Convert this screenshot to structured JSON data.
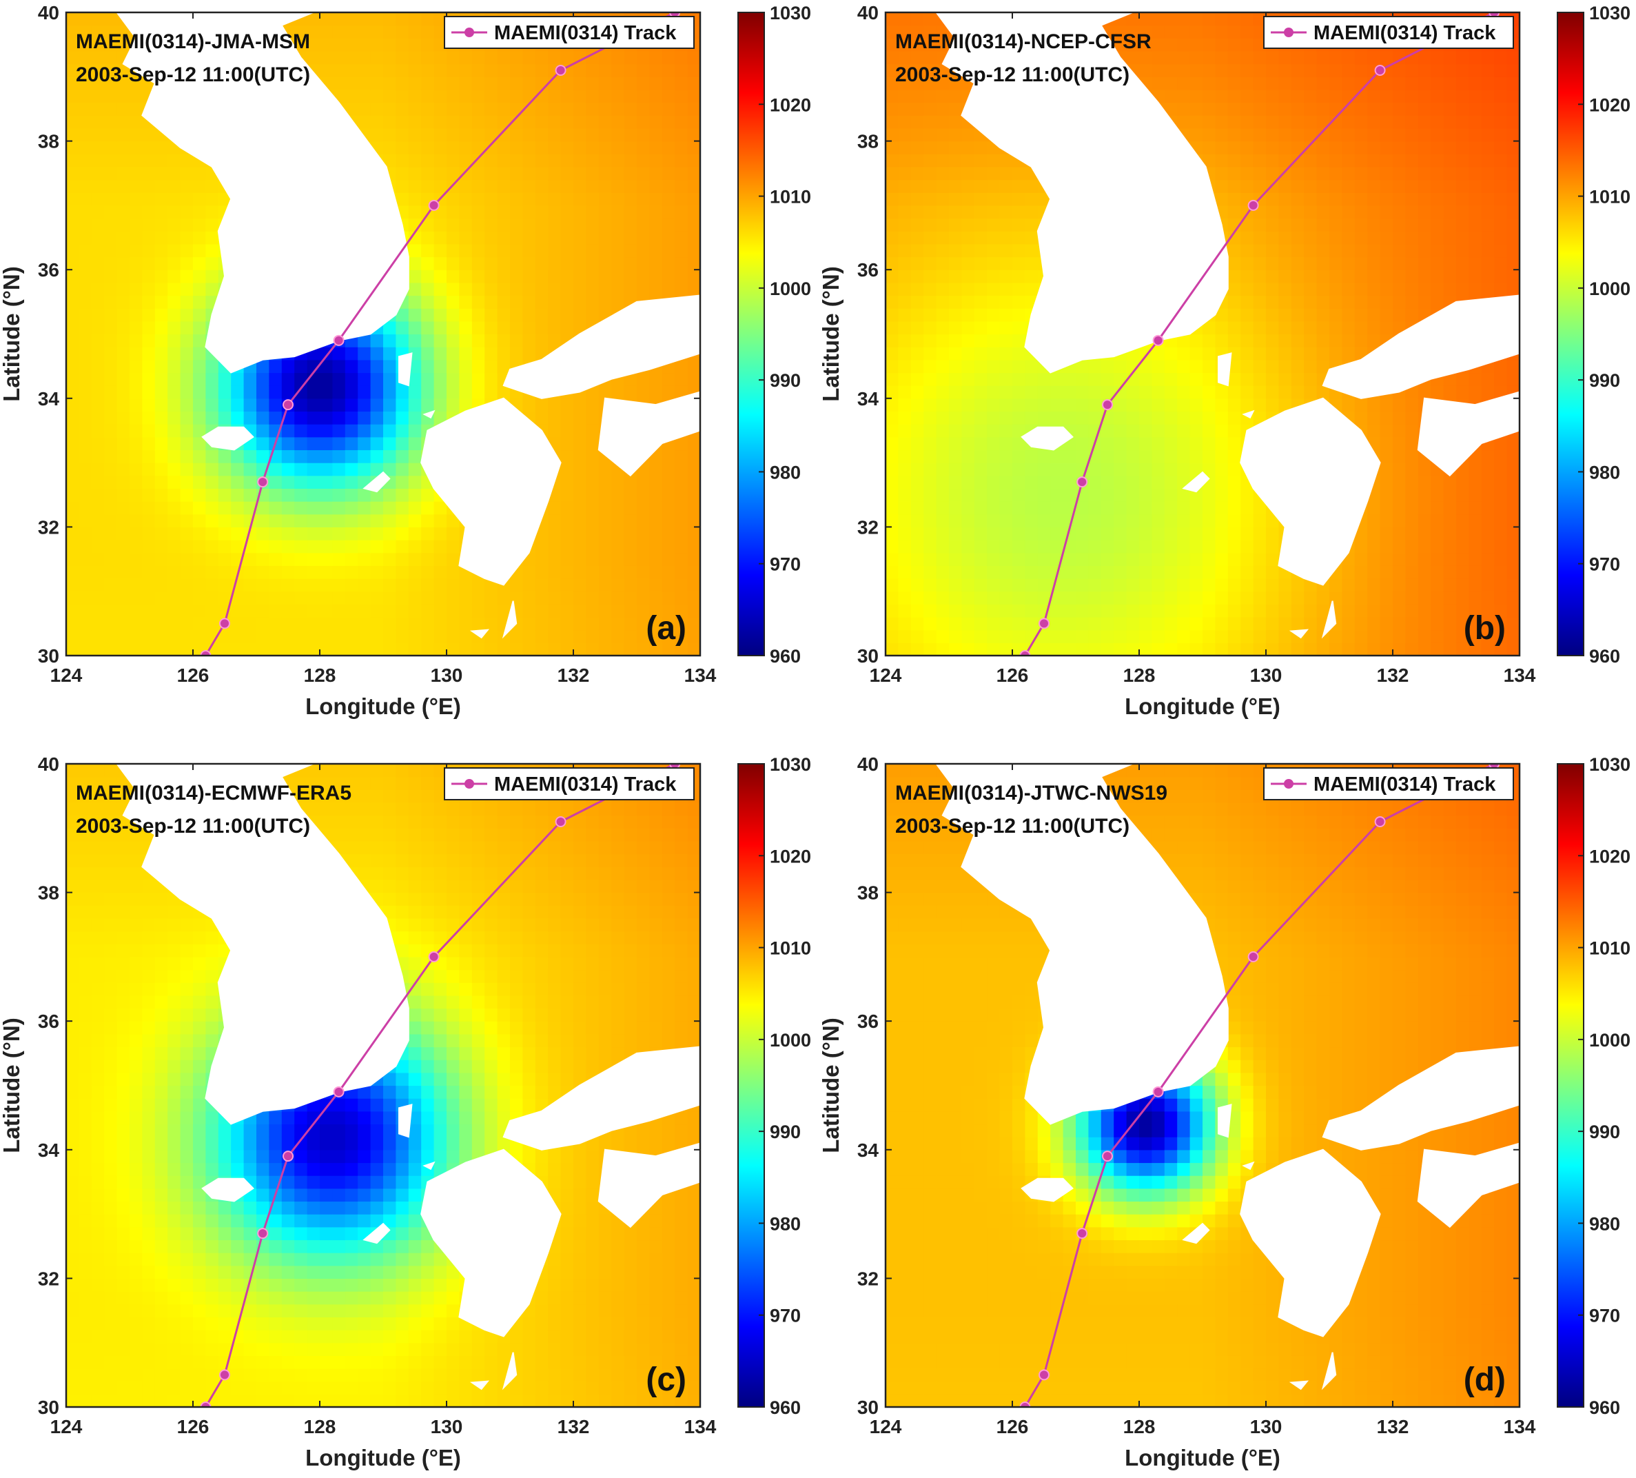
{
  "colors": {
    "track": "#cc3fa6",
    "land": "#ffffff",
    "frame": "#222222"
  },
  "colormap": "jet",
  "chart_data": [
    {
      "type": "heatmap",
      "title_lines": [
        "MAEMI(0314)-JMA-MSM",
        "2003-Sep-12 11:00(UTC)"
      ],
      "panel_label": "(a)",
      "xlabel": "Longitude (°E)",
      "ylabel": "Latitude (°N)",
      "xlim": [
        124,
        134
      ],
      "ylim": [
        30,
        40
      ],
      "xticks": [
        124,
        126,
        128,
        130,
        132,
        134
      ],
      "yticks": [
        30,
        32,
        34,
        36,
        38,
        40
      ],
      "colorbar": {
        "range": [
          960,
          1030
        ],
        "ticks": [
          960,
          970,
          980,
          990,
          1000,
          1010,
          1020,
          1030
        ]
      },
      "field": {
        "center_lon": 128.0,
        "center_lat": 34.2,
        "central_pressure": 962,
        "radius_deg": 1.1,
        "background": 1006,
        "east_gradient": 0.9
      },
      "legend": {
        "label": "MAEMI(0314) Track",
        "position": "top-right"
      },
      "track": {
        "lon": [
          126.2,
          126.5,
          127.1,
          127.5,
          128.3,
          129.8,
          131.8,
          133.6
        ],
        "lat": [
          30.0,
          30.5,
          32.7,
          33.9,
          34.9,
          37.0,
          39.1,
          40.0
        ]
      }
    },
    {
      "type": "heatmap",
      "title_lines": [
        "MAEMI(0314)-NCEP-CFSR",
        "2003-Sep-12 11:00(UTC)"
      ],
      "panel_label": "(b)",
      "xlabel": "Longitude (°E)",
      "ylabel": "Latitude (°N)",
      "xlim": [
        124,
        134
      ],
      "ylim": [
        30,
        40
      ],
      "xticks": [
        124,
        126,
        128,
        130,
        132,
        134
      ],
      "yticks": [
        30,
        32,
        34,
        36,
        38,
        40
      ],
      "colorbar": {
        "range": [
          960,
          1030
        ],
        "ticks": [
          960,
          970,
          980,
          990,
          1000,
          1010,
          1020,
          1030
        ]
      },
      "field": {
        "center_lon": 126.8,
        "center_lat": 32.5,
        "central_pressure": 999,
        "radius_deg": 2.8,
        "background": 1011,
        "east_gradient": 0.7
      },
      "legend": {
        "label": "MAEMI(0314) Track",
        "position": "top-right"
      },
      "track": {
        "lon": [
          126.2,
          126.5,
          127.1,
          127.5,
          128.3,
          129.8,
          131.8,
          133.6
        ],
        "lat": [
          30.0,
          30.5,
          32.7,
          33.9,
          34.9,
          37.0,
          39.1,
          40.0
        ]
      }
    },
    {
      "type": "heatmap",
      "title_lines": [
        "MAEMI(0314)-ECMWF-ERA5",
        "2003-Sep-12 11:00(UTC)"
      ],
      "panel_label": "(c)",
      "xlabel": "Longitude (°E)",
      "ylabel": "Latitude (°N)",
      "xlim": [
        124,
        134
      ],
      "ylim": [
        30,
        40
      ],
      "xticks": [
        124,
        126,
        128,
        130,
        132,
        134
      ],
      "yticks": [
        30,
        32,
        34,
        36,
        38,
        40
      ],
      "colorbar": {
        "range": [
          960,
          1030
        ],
        "ticks": [
          960,
          970,
          980,
          990,
          1000,
          1010,
          1020,
          1030
        ]
      },
      "field": {
        "center_lon": 128.2,
        "center_lat": 34.2,
        "central_pressure": 965,
        "radius_deg": 1.3,
        "background": 1005,
        "east_gradient": 0.9
      },
      "legend": {
        "label": "MAEMI(0314) Track",
        "position": "top-right"
      },
      "track": {
        "lon": [
          126.2,
          126.5,
          127.1,
          127.5,
          128.3,
          129.8,
          131.8,
          133.6
        ],
        "lat": [
          30.0,
          30.5,
          32.7,
          33.9,
          34.9,
          37.0,
          39.1,
          40.0
        ]
      }
    },
    {
      "type": "heatmap",
      "title_lines": [
        "MAEMI(0314)-JTWC-NWS19",
        "2003-Sep-12 11:00(UTC)"
      ],
      "panel_label": "(d)",
      "xlabel": "Longitude (°E)",
      "ylabel": "Latitude (°N)",
      "xlim": [
        124,
        134
      ],
      "ylim": [
        30,
        40
      ],
      "xticks": [
        124,
        126,
        128,
        130,
        132,
        134
      ],
      "yticks": [
        30,
        32,
        34,
        36,
        38,
        40
      ],
      "colorbar": {
        "range": [
          960,
          1030
        ],
        "ticks": [
          960,
          970,
          980,
          990,
          1000,
          1010,
          1020,
          1030
        ]
      },
      "field": {
        "center_lon": 128.1,
        "center_lat": 34.4,
        "central_pressure": 962,
        "radius_deg": 0.75,
        "background": 1008,
        "east_gradient": 0.8
      },
      "legend": {
        "label": "MAEMI(0314) Track",
        "position": "top-right"
      },
      "track": {
        "lon": [
          126.2,
          126.5,
          127.1,
          127.5,
          128.3,
          129.8,
          131.8,
          133.6
        ],
        "lat": [
          30.0,
          30.5,
          32.7,
          33.9,
          34.9,
          37.0,
          39.1,
          40.0
        ]
      }
    }
  ],
  "land": {
    "korea": [
      [
        124.8,
        40.0
      ],
      [
        125.1,
        39.6
      ],
      [
        124.9,
        39.2
      ],
      [
        125.4,
        38.9
      ],
      [
        125.2,
        38.4
      ],
      [
        125.8,
        37.9
      ],
      [
        126.3,
        37.6
      ],
      [
        126.6,
        37.1
      ],
      [
        126.4,
        36.6
      ],
      [
        126.5,
        35.9
      ],
      [
        126.3,
        35.3
      ],
      [
        126.2,
        34.8
      ],
      [
        126.6,
        34.4
      ],
      [
        127.1,
        34.6
      ],
      [
        127.6,
        34.65
      ],
      [
        128.3,
        34.9
      ],
      [
        128.8,
        35.0
      ],
      [
        129.2,
        35.3
      ],
      [
        129.4,
        35.7
      ],
      [
        129.4,
        36.2
      ],
      [
        129.3,
        36.7
      ],
      [
        129.05,
        37.6
      ],
      [
        128.6,
        38.2
      ],
      [
        128.3,
        38.6
      ],
      [
        127.7,
        39.3
      ],
      [
        127.4,
        39.8
      ],
      [
        127.9,
        40.0
      ]
    ],
    "honshu": [
      [
        134.0,
        35.6
      ],
      [
        133.0,
        35.5
      ],
      [
        132.1,
        35.0
      ],
      [
        131.5,
        34.6
      ],
      [
        131.0,
        34.45
      ],
      [
        130.9,
        34.2
      ],
      [
        131.5,
        34.0
      ],
      [
        132.1,
        34.1
      ],
      [
        132.6,
        34.3
      ],
      [
        133.2,
        34.45
      ],
      [
        134.0,
        34.7
      ]
    ],
    "shikoku": [
      [
        132.5,
        34.0
      ],
      [
        133.3,
        33.9
      ],
      [
        134.0,
        34.1
      ],
      [
        134.0,
        33.5
      ],
      [
        133.4,
        33.3
      ],
      [
        132.9,
        32.8
      ],
      [
        132.4,
        33.2
      ]
    ],
    "kyushu": [
      [
        129.7,
        33.5
      ],
      [
        130.3,
        33.8
      ],
      [
        130.9,
        34.0
      ],
      [
        131.5,
        33.5
      ],
      [
        131.8,
        33.0
      ],
      [
        131.6,
        32.4
      ],
      [
        131.3,
        31.6
      ],
      [
        130.9,
        31.1
      ],
      [
        130.6,
        31.2
      ],
      [
        130.2,
        31.4
      ],
      [
        130.3,
        32.0
      ],
      [
        129.8,
        32.6
      ],
      [
        129.6,
        33.0
      ]
    ],
    "jeju": [
      [
        126.15,
        33.4
      ],
      [
        126.4,
        33.55
      ],
      [
        126.8,
        33.55
      ],
      [
        126.95,
        33.4
      ],
      [
        126.65,
        33.2
      ],
      [
        126.3,
        33.25
      ]
    ],
    "tsushima": [
      [
        129.25,
        34.65
      ],
      [
        129.45,
        34.7
      ],
      [
        129.4,
        34.2
      ],
      [
        129.25,
        34.25
      ]
    ],
    "tanegashima": [
      [
        130.9,
        30.3
      ],
      [
        131.05,
        30.85
      ],
      [
        131.1,
        30.5
      ]
    ],
    "yakushima": [
      [
        130.4,
        30.38
      ],
      [
        130.65,
        30.4
      ],
      [
        130.55,
        30.28
      ]
    ],
    "goto": [
      [
        128.7,
        32.6
      ],
      [
        129.0,
        32.85
      ],
      [
        129.1,
        32.75
      ],
      [
        128.9,
        32.55
      ]
    ],
    "iki": [
      [
        129.65,
        33.75
      ],
      [
        129.8,
        33.8
      ],
      [
        129.75,
        33.7
      ]
    ]
  }
}
